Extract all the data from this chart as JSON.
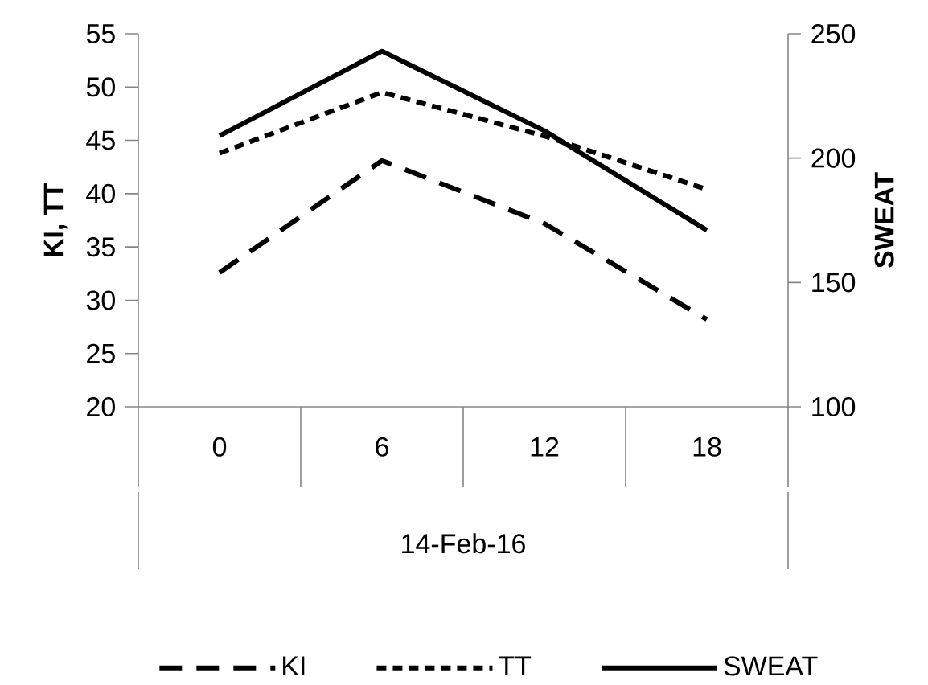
{
  "chart_data": {
    "type": "line",
    "xlabel": "14-Feb-16",
    "ylabel": "KI, TT",
    "y2label": "SWEAT",
    "categories": [
      "0",
      "6",
      "12",
      "18"
    ],
    "ylim": [
      20,
      55
    ],
    "yticks": [
      20,
      25,
      30,
      35,
      40,
      45,
      50,
      55
    ],
    "y2lim": [
      100,
      250
    ],
    "y2ticks": [
      100,
      150,
      200,
      250
    ],
    "legend": "bottom",
    "series": [
      {
        "name": "KI",
        "color": "#000000",
        "line_style": "dashed",
        "values": [
          32.6,
          43.1,
          37.2,
          28.2
        ]
      },
      {
        "name": "TT",
        "color": "#000000",
        "line_style": "dotted",
        "values": [
          43.8,
          49.5,
          45.4,
          40.4
        ]
      },
      {
        "name": "SWEAT",
        "color": "#000000",
        "line_style": "solid",
        "axis": "y2",
        "values": [
          209,
          243,
          211,
          171
        ]
      }
    ]
  }
}
